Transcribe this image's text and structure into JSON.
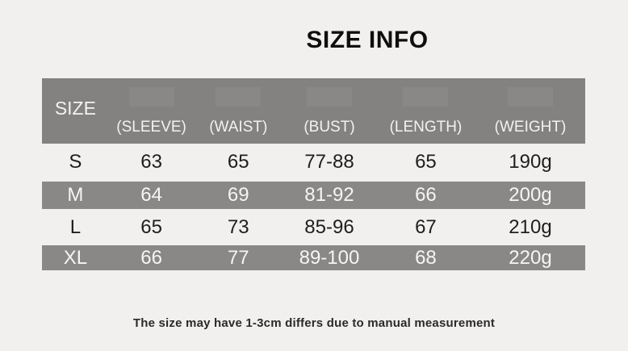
{
  "title": "SIZE INFO",
  "table": {
    "headers": [
      "SIZE",
      "(SLEEVE)",
      "(WAIST)",
      "(BUST)",
      "(LENGTH)",
      "(WEIGHT)"
    ],
    "rows": [
      {
        "size": "S",
        "cells": [
          "63",
          "65",
          "77-88",
          "65",
          "190g"
        ],
        "highlight": false
      },
      {
        "size": "M",
        "cells": [
          "64",
          "69",
          "81-92",
          "66",
          "200g"
        ],
        "highlight": true
      },
      {
        "size": "L",
        "cells": [
          "65",
          "73",
          "85-96",
          "67",
          "210g"
        ],
        "highlight": false
      },
      {
        "size": "XL",
        "cells": [
          "66",
          "77",
          "89-100",
          "68",
          "220g"
        ],
        "highlight": true
      }
    ]
  },
  "note": "The size may have 1-3cm differs due to manual measurement",
  "colors": {
    "page_background": "#f1f0ee",
    "header_gray": "#848280",
    "band_gray": "#8a8886",
    "light_text": "#f3f2f0",
    "dark_text": "#1e1e1e"
  }
}
